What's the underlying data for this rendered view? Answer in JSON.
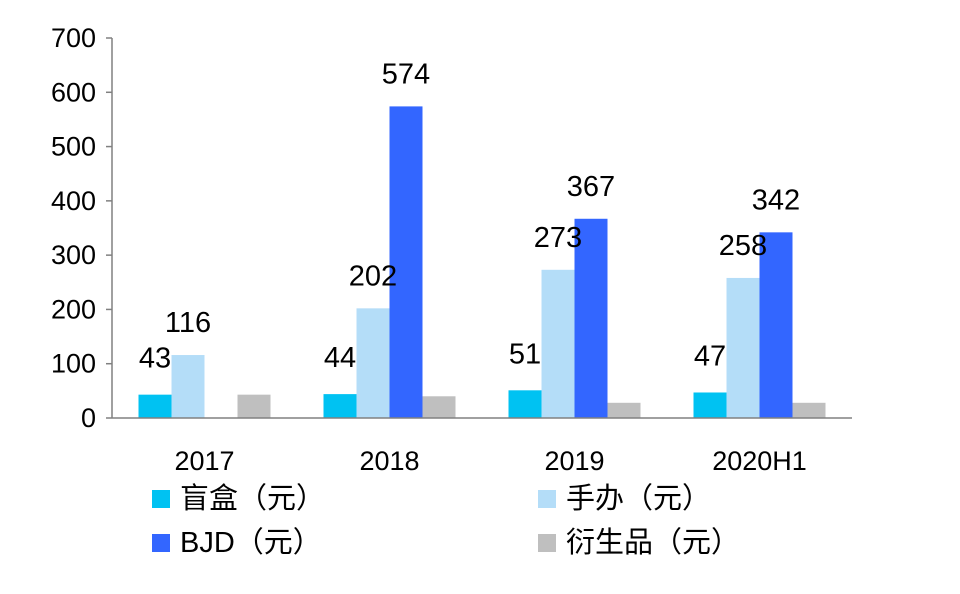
{
  "chart_data": {
    "type": "bar",
    "categories": [
      "2017",
      "2018",
      "2019",
      "2020H1"
    ],
    "series": [
      {
        "name": "盲盒（元）",
        "color": "#00C2F2",
        "values": [
          43,
          44,
          51,
          47
        ],
        "labels": [
          "43",
          "44",
          "51",
          "47"
        ]
      },
      {
        "name": "手办（元）",
        "color": "#B4DDF8",
        "values": [
          116,
          202,
          273,
          258
        ],
        "labels": [
          "116",
          "202",
          "273",
          "258"
        ]
      },
      {
        "name": "BJD（元）",
        "color": "#3366FF",
        "values": [
          null,
          574,
          367,
          342
        ],
        "labels": [
          null,
          "574",
          "367",
          "342"
        ]
      },
      {
        "name": "衍生品（元）",
        "color": "#BFBFBF",
        "values": [
          43,
          40,
          28,
          28
        ],
        "labels": [
          null,
          null,
          null,
          null
        ]
      }
    ],
    "ylim": [
      0,
      700
    ],
    "yticks": [
      0,
      100,
      200,
      300,
      400,
      500,
      600,
      700
    ],
    "grid": false,
    "legend_position": "bottom",
    "title": "",
    "xlabel": "",
    "ylabel": ""
  }
}
